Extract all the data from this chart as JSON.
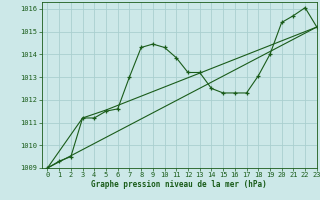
{
  "title": "Graphe pression niveau de la mer (hPa)",
  "bg_color": "#cce8e8",
  "grid_color": "#aacfcf",
  "line_color": "#1a5c1a",
  "xlim": [
    -0.5,
    23
  ],
  "ylim": [
    1009,
    1016.3
  ],
  "xticks": [
    0,
    1,
    2,
    3,
    4,
    5,
    6,
    7,
    8,
    9,
    10,
    11,
    12,
    13,
    14,
    15,
    16,
    17,
    18,
    19,
    20,
    21,
    22,
    23
  ],
  "yticks": [
    1009,
    1010,
    1011,
    1012,
    1013,
    1014,
    1015,
    1016
  ],
  "series1": [
    [
      0,
      1009.0
    ],
    [
      1,
      1009.3
    ],
    [
      2,
      1009.5
    ],
    [
      3,
      1011.2
    ],
    [
      4,
      1011.2
    ],
    [
      5,
      1011.5
    ],
    [
      6,
      1011.6
    ],
    [
      7,
      1013.0
    ],
    [
      8,
      1014.3
    ],
    [
      9,
      1014.45
    ],
    [
      10,
      1014.3
    ],
    [
      11,
      1013.85
    ],
    [
      12,
      1013.2
    ],
    [
      13,
      1013.2
    ],
    [
      14,
      1012.5
    ],
    [
      15,
      1012.3
    ],
    [
      16,
      1012.3
    ],
    [
      17,
      1012.3
    ],
    [
      18,
      1013.05
    ],
    [
      19,
      1014.0
    ],
    [
      20,
      1015.4
    ],
    [
      21,
      1015.7
    ],
    [
      22,
      1016.05
    ],
    [
      23,
      1015.2
    ]
  ],
  "series2": [
    [
      0,
      1009.0
    ],
    [
      3,
      1011.2
    ],
    [
      5,
      1011.55
    ],
    [
      23,
      1015.2
    ]
  ],
  "series3": [
    [
      0,
      1009.0
    ],
    [
      23,
      1015.2
    ]
  ]
}
